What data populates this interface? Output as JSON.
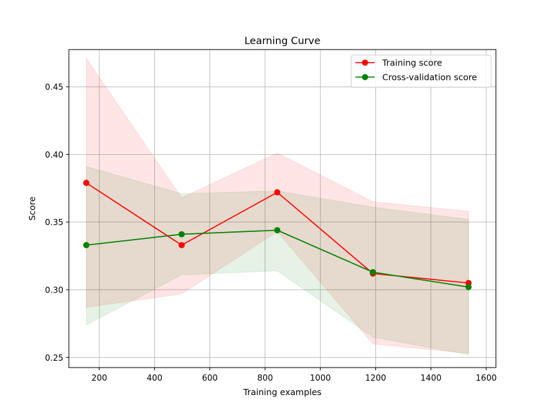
{
  "chart_data": {
    "type": "line",
    "title": "Learning Curve",
    "xlabel": "Training examples",
    "ylabel": "Score",
    "xlim": [
      90,
      1635
    ],
    "ylim": [
      0.2425,
      0.4775
    ],
    "xticks": [
      200,
      400,
      600,
      800,
      1000,
      1200,
      1400,
      1600
    ],
    "yticks": [
      0.25,
      0.3,
      0.35,
      0.4,
      0.45
    ],
    "xtick_labels": [
      "200",
      "400",
      "600",
      "800",
      "1000",
      "1200",
      "1400",
      "1600"
    ],
    "ytick_labels": [
      "0.25",
      "0.30",
      "0.35",
      "0.40",
      "0.45"
    ],
    "grid": true,
    "legend_position": "top-right",
    "x": [
      153,
      498,
      844,
      1190,
      1536
    ],
    "series": [
      {
        "name": "Training score",
        "color": "#ff0000",
        "values": [
          0.379,
          0.333,
          0.372,
          0.312,
          0.305
        ],
        "band_lower": [
          0.287,
          0.297,
          0.343,
          0.26,
          0.253
        ],
        "band_upper": [
          0.471,
          0.368,
          0.401,
          0.365,
          0.358
        ]
      },
      {
        "name": "Cross-validation score",
        "color": "#008000",
        "values": [
          0.333,
          0.341,
          0.344,
          0.313,
          0.302
        ],
        "band_lower": [
          0.274,
          0.311,
          0.314,
          0.265,
          0.252
        ],
        "band_upper": [
          0.391,
          0.371,
          0.373,
          0.361,
          0.352
        ]
      }
    ]
  }
}
